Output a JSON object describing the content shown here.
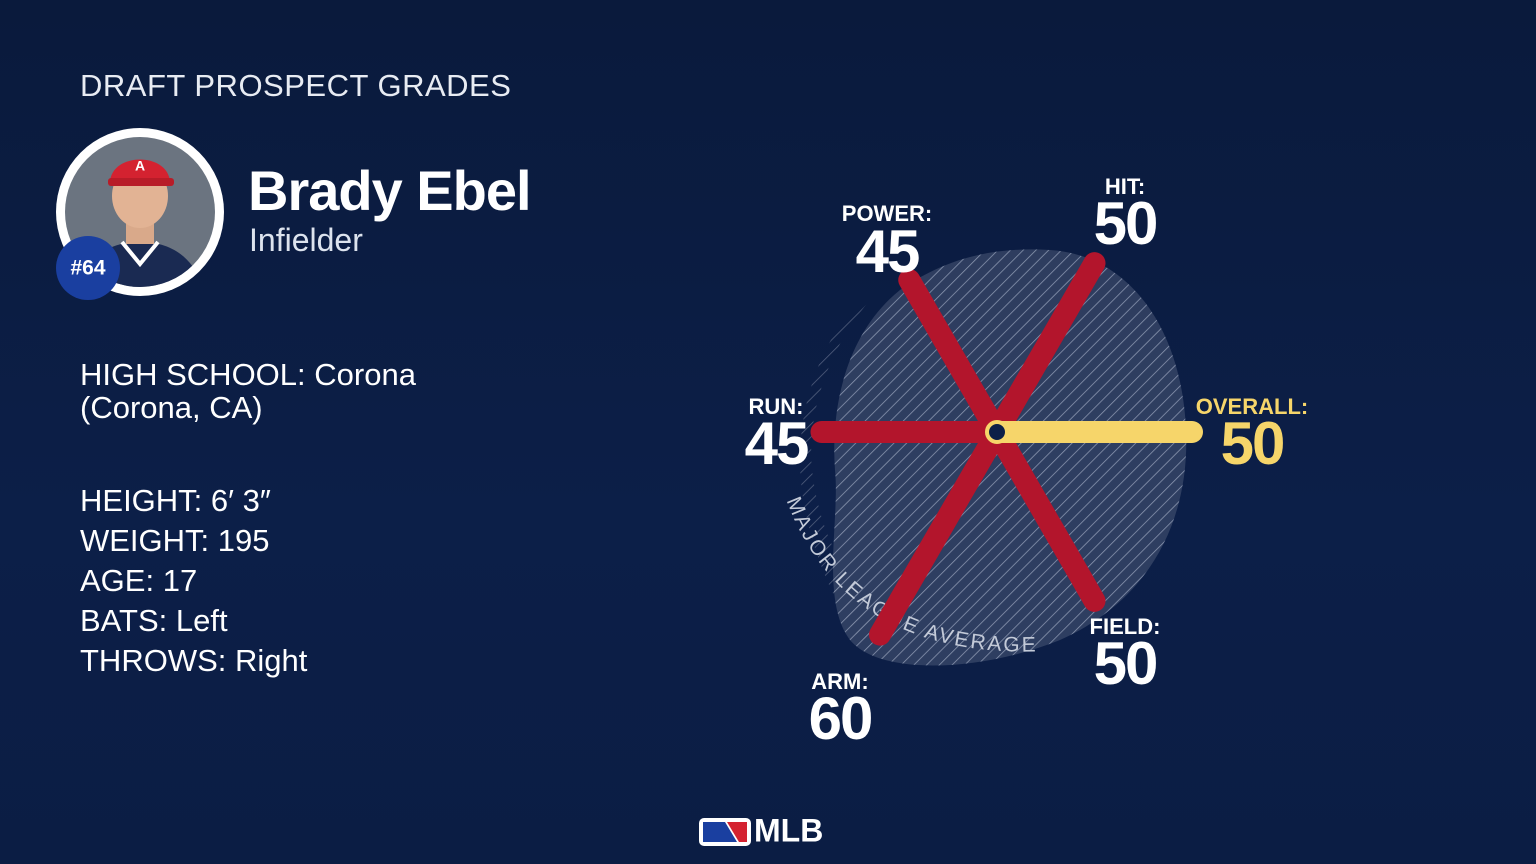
{
  "header": {
    "title": "DRAFT PROSPECT GRADES"
  },
  "player": {
    "name": "Brady Ebel",
    "position": "Infielder",
    "number": "#64"
  },
  "details": {
    "high_school": {
      "label": "HIGH SCHOOL:",
      "value": "Corona (Corona, CA)"
    },
    "stats": [
      {
        "label": "HEIGHT:",
        "value": "6′ 3″"
      },
      {
        "label": "WEIGHT:",
        "value": "195"
      },
      {
        "label": "AGE:",
        "value": "17"
      },
      {
        "label": "BATS:",
        "value": "Left"
      },
      {
        "label": "THROWS:",
        "value": "Right"
      }
    ]
  },
  "grades": [
    {
      "label": "HIT:",
      "value": 50
    },
    {
      "label": "POWER:",
      "value": 45
    },
    {
      "label": "RUN:",
      "value": 45
    },
    {
      "label": "ARM:",
      "value": 60
    },
    {
      "label": "FIELD:",
      "value": 50
    }
  ],
  "overall": {
    "label": "OVERALL:",
    "value": 50
  },
  "average_label": "MAJOR LEAGUE AVERAGE",
  "footer": {
    "logo": "MLB"
  }
}
